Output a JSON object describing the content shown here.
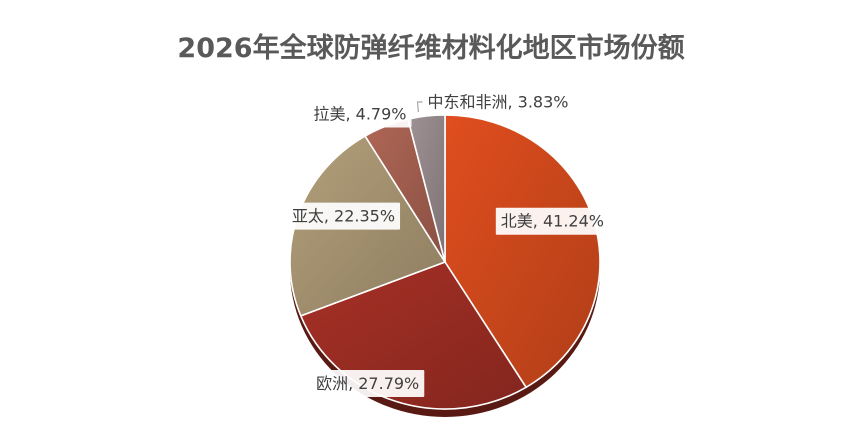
{
  "chart_data": {
    "type": "pie",
    "title": "2026年全球防弹纤维材料化地区市场份额",
    "categories": [
      "北美",
      "欧洲",
      "亚太",
      "拉美",
      "中东和非洲"
    ],
    "values": [
      41.24,
      27.79,
      22.35,
      4.79,
      3.83
    ],
    "unit": "%",
    "data_labels": [
      "北美, 41.24%",
      "欧洲, 27.79%",
      "亚太, 22.35%",
      "拉美, 4.79%",
      "中东和非洲, 3.83%"
    ],
    "colors": [
      "#C8461B",
      "#952B22",
      "#A08E6D",
      "#9C5B4C",
      "#8E8284"
    ],
    "legend": "none",
    "style": "3d-tilted"
  }
}
